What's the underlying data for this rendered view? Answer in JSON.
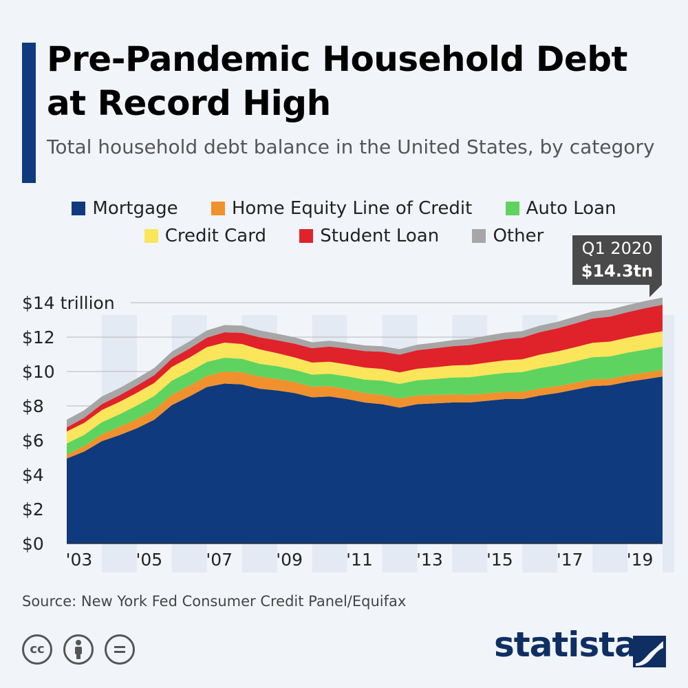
{
  "header": {
    "title": "Pre-Pandemic Household Debt at Record High",
    "subtitle": "Total household debt balance in the United States, by category"
  },
  "legend": {
    "row1": [
      {
        "label": "Mortgage",
        "color": "#0f3a7d"
      },
      {
        "label": "Home Equity Line of Credit",
        "color": "#f0912d"
      },
      {
        "label": "Auto Loan",
        "color": "#5fd35f"
      }
    ],
    "row2": [
      {
        "label": "Credit Card",
        "color": "#fbe55a"
      },
      {
        "label": "Student Loan",
        "color": "#e0222a"
      },
      {
        "label": "Other",
        "color": "#a6a6a6"
      }
    ]
  },
  "callout": {
    "date": "Q1 2020",
    "value": "$14.3tn"
  },
  "footer": {
    "source": "Source: New York Fed Consumer Credit Panel/Equifax",
    "brand": "statista"
  },
  "icons": [
    "cc-icon",
    "by-icon",
    "nd-icon",
    "statista-logo-icon"
  ],
  "chart_data": {
    "type": "area",
    "stacked": true,
    "ylim": [
      0,
      14
    ],
    "yticks": [
      {
        "value": 0,
        "label": "$0"
      },
      {
        "value": 2,
        "label": "$2"
      },
      {
        "value": 4,
        "label": "$4"
      },
      {
        "value": 6,
        "label": "$6"
      },
      {
        "value": 8,
        "label": "$8"
      },
      {
        "value": 10,
        "label": "$10"
      },
      {
        "value": 12,
        "label": "$12"
      },
      {
        "value": 14,
        "label": "$14 trillion"
      }
    ],
    "xticks": [
      "'03",
      "'05",
      "'07",
      "'09",
      "'11",
      "'13",
      "'15",
      "'17",
      "'19"
    ],
    "x": [
      2003,
      2003.5,
      2004,
      2004.5,
      2005,
      2005.5,
      2006,
      2006.5,
      2007,
      2007.5,
      2008,
      2008.5,
      2009,
      2009.5,
      2010,
      2010.5,
      2011,
      2011.5,
      2012,
      2012.5,
      2013,
      2013.5,
      2014,
      2014.5,
      2015,
      2015.5,
      2016,
      2016.5,
      2017,
      2017.5,
      2018,
      2018.5,
      2019,
      2019.5,
      2020
    ],
    "series": [
      {
        "name": "Mortgage",
        "color": "#0f3a7d",
        "values": [
          4.94,
          5.35,
          5.95,
          6.3,
          6.7,
          7.2,
          8.05,
          8.55,
          9.1,
          9.3,
          9.25,
          9.0,
          8.9,
          8.75,
          8.5,
          8.55,
          8.4,
          8.2,
          8.1,
          7.9,
          8.1,
          8.15,
          8.2,
          8.2,
          8.3,
          8.4,
          8.4,
          8.6,
          8.75,
          8.95,
          9.15,
          9.2,
          9.4,
          9.55,
          9.71
        ]
      },
      {
        "name": "Home Equity Line of Credit",
        "color": "#f0912d",
        "values": [
          0.24,
          0.31,
          0.4,
          0.48,
          0.54,
          0.58,
          0.6,
          0.62,
          0.65,
          0.7,
          0.71,
          0.71,
          0.67,
          0.64,
          0.62,
          0.6,
          0.57,
          0.55,
          0.54,
          0.53,
          0.51,
          0.49,
          0.47,
          0.45,
          0.43,
          0.42,
          0.42,
          0.41,
          0.4,
          0.4,
          0.4,
          0.38,
          0.38,
          0.39,
          0.39
        ]
      },
      {
        "name": "Auto Loan",
        "color": "#5fd35f",
        "values": [
          0.64,
          0.66,
          0.7,
          0.73,
          0.78,
          0.8,
          0.82,
          0.82,
          0.81,
          0.8,
          0.78,
          0.74,
          0.74,
          0.71,
          0.7,
          0.72,
          0.75,
          0.78,
          0.83,
          0.85,
          0.88,
          0.93,
          0.98,
          1.02,
          1.07,
          1.1,
          1.15,
          1.19,
          1.22,
          1.24,
          1.28,
          1.3,
          1.32,
          1.33,
          1.35
        ]
      },
      {
        "name": "Credit Card",
        "color": "#fbe55a",
        "values": [
          0.69,
          0.7,
          0.71,
          0.72,
          0.74,
          0.76,
          0.8,
          0.82,
          0.86,
          0.88,
          0.86,
          0.84,
          0.76,
          0.72,
          0.7,
          0.7,
          0.69,
          0.7,
          0.68,
          0.67,
          0.67,
          0.68,
          0.7,
          0.71,
          0.72,
          0.73,
          0.74,
          0.78,
          0.8,
          0.82,
          0.84,
          0.86,
          0.87,
          0.9,
          0.89
        ]
      },
      {
        "name": "Student Loan",
        "color": "#e0222a",
        "values": [
          0.24,
          0.29,
          0.34,
          0.38,
          0.42,
          0.45,
          0.48,
          0.52,
          0.55,
          0.6,
          0.65,
          0.7,
          0.75,
          0.8,
          0.84,
          0.88,
          0.92,
          0.96,
          1.0,
          1.03,
          1.08,
          1.1,
          1.12,
          1.16,
          1.19,
          1.23,
          1.26,
          1.31,
          1.34,
          1.38,
          1.41,
          1.45,
          1.48,
          1.51,
          1.54
        ]
      },
      {
        "name": "Other",
        "color": "#a6a6a6",
        "values": [
          0.45,
          0.44,
          0.45,
          0.42,
          0.42,
          0.42,
          0.41,
          0.42,
          0.42,
          0.42,
          0.42,
          0.4,
          0.38,
          0.37,
          0.34,
          0.34,
          0.33,
          0.33,
          0.32,
          0.32,
          0.32,
          0.33,
          0.35,
          0.36,
          0.38,
          0.38,
          0.38,
          0.38,
          0.38,
          0.4,
          0.41,
          0.41,
          0.41,
          0.42,
          0.42
        ]
      }
    ]
  }
}
